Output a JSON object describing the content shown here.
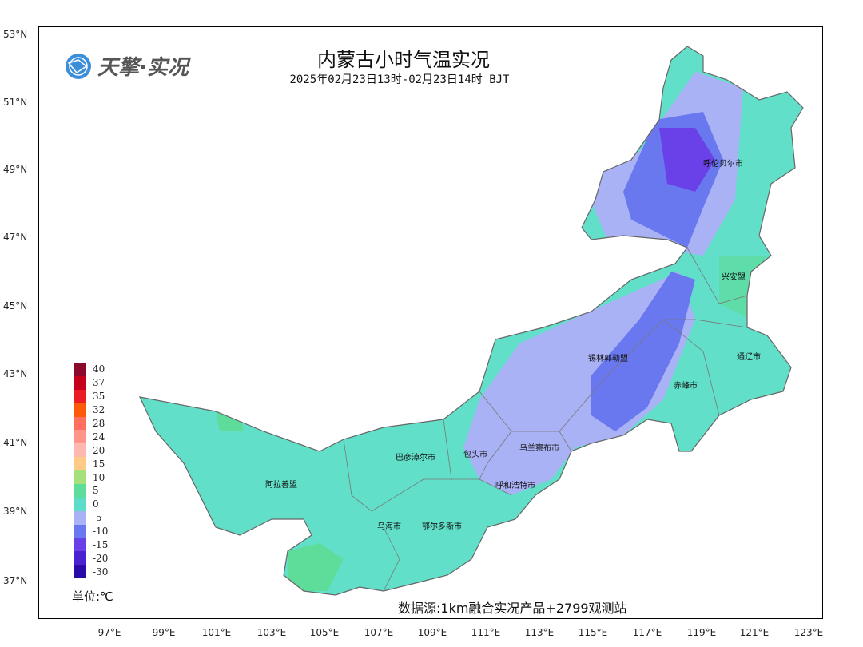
{
  "title": "内蒙古小时气温实况",
  "subtitle": "2025年02月23日13时-02月23日14时 BJT",
  "logo": {
    "text": "天擎·实况",
    "icon": "globe-network-icon"
  },
  "lat_ticks": [
    "53°N",
    "51°N",
    "49°N",
    "47°N",
    "45°N",
    "43°N",
    "41°N",
    "39°N",
    "37°N"
  ],
  "lon_ticks": [
    "97°E",
    "99°E",
    "101°E",
    "103°E",
    "105°E",
    "107°E",
    "109°E",
    "111°E",
    "113°E",
    "115°E",
    "117°E",
    "119°E",
    "121°E",
    "123°E"
  ],
  "legend": {
    "items": [
      {
        "label": "40",
        "color": "#8b0a2e"
      },
      {
        "label": "37",
        "color": "#c4001a"
      },
      {
        "label": "35",
        "color": "#ec1c24"
      },
      {
        "label": "32",
        "color": "#ff5a0a"
      },
      {
        "label": "28",
        "color": "#ff6e5e"
      },
      {
        "label": "24",
        "color": "#ff9488"
      },
      {
        "label": "20",
        "color": "#ffb8b0"
      },
      {
        "label": "15",
        "color": "#ffcc88"
      },
      {
        "label": "10",
        "color": "#a6e07a"
      },
      {
        "label": "5",
        "color": "#5ddc9a"
      },
      {
        "label": "0",
        "color": "#5ddcc8"
      },
      {
        "label": "-5",
        "color": "#a9b2f5"
      },
      {
        "label": "-10",
        "color": "#6a78f0"
      },
      {
        "label": "-15",
        "color": "#6a40e8"
      },
      {
        "label": "-20",
        "color": "#4a22d0"
      },
      {
        "label": "-30",
        "color": "#2a0aa8"
      }
    ],
    "unit": "单位:℃"
  },
  "cities": [
    "呼伦贝尔市",
    "兴安盟",
    "锡林郭勒盟",
    "通辽市",
    "赤峰市",
    "乌兰察布市",
    "包头市",
    "巴彦淖尔市",
    "呼和浩特市",
    "阿拉善盟",
    "乌海市",
    "鄂尔多斯市"
  ],
  "source": "数据源:1km融合实况产品+2799观测站"
}
